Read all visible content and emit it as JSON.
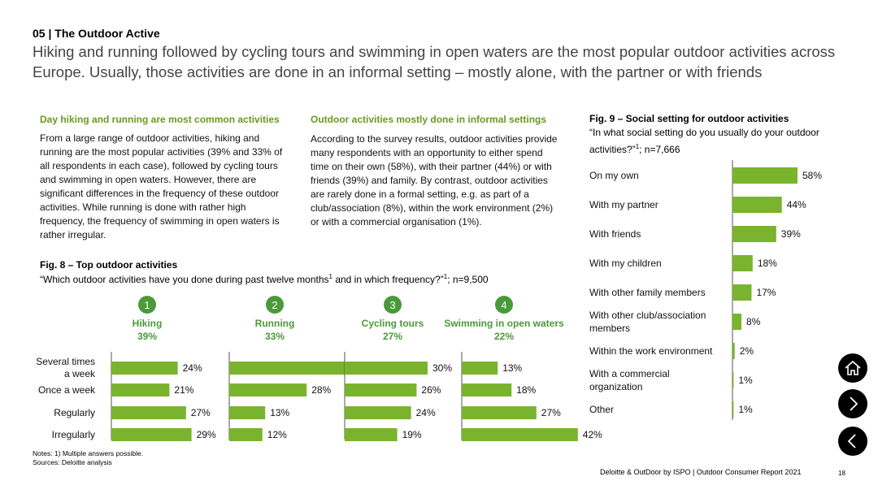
{
  "header": {
    "section": "05 | The Outdoor Active",
    "headline": "Hiking and running followed by cycling tours and swimming in open waters are the most popular outdoor activities across Europe. Usually, those activities are done in an informal setting – mostly alone, with the partner or with friends"
  },
  "col1": {
    "heading": "Day hiking and running are most common activities",
    "body": "From a large range of outdoor activities, hiking and running are the most popular activities (39% and 33% of all respondents in each case), followed by cycling tours and swimming in open waters. However, there are significant differences in the frequency of these outdoor activities. While running is done with rather high frequency, the frequency of swimming in open waters is rather irregular."
  },
  "col2": {
    "heading": "Outdoor activities mostly done in informal settings",
    "body": "According to the survey results, outdoor activities provide many respondents with an opportunity to either spend time on their own (58%), with their partner (44%) or with friends (39%) and family. By contrast, outdoor activities are rarely done in a formal setting, e.g. as part of a club/association (8%), within the work environment (2%) or with a commercial organisation (1%)."
  },
  "fig8": {
    "title": "Fig. 8 – Top outdoor activities",
    "question_a": "“Which outdoor activities have you done during past twelve months",
    "question_sup": "1",
    "question_b": " and in which frequency?”",
    "question_sup2": "1",
    "question_c": "; n=9,500"
  },
  "fig9": {
    "title": "Fig. 9 – Social setting for outdoor activities",
    "question_a": "“In what social setting do you usually do your outdoor activities?”",
    "question_sup": "1",
    "question_b": "; n=7,666"
  },
  "chart_data": [
    {
      "type": "bar",
      "orientation": "horizontal",
      "title": "Fig. 8 – Top outdoor activities",
      "categories": [
        "Several times a week",
        "Once a week",
        "Regularly",
        "Irregularly"
      ],
      "category_lines": [
        [
          "Several times",
          "a week"
        ],
        [
          "Once a week"
        ],
        [
          "Regularly"
        ],
        [
          "Irregularly"
        ]
      ],
      "xlim": [
        0,
        50
      ],
      "series": [
        {
          "number": "1",
          "name": "Hiking",
          "share": "39%",
          "values": [
            24,
            21,
            27,
            29
          ]
        },
        {
          "number": "2",
          "name": "Running",
          "share": "33%",
          "values": [
            47,
            28,
            13,
            12
          ]
        },
        {
          "number": "3",
          "name": "Cycling tours",
          "share": "27%",
          "values": [
            30,
            26,
            24,
            19
          ]
        },
        {
          "number": "4",
          "name": "Swimming in open waters",
          "share": "22%",
          "values": [
            13,
            18,
            27,
            42
          ]
        }
      ],
      "value_suffix": "%",
      "bar_color": "#7ab32e"
    },
    {
      "type": "bar",
      "orientation": "horizontal",
      "title": "Fig. 9 – Social setting for outdoor activities",
      "categories": [
        "On my own",
        "With my partner",
        "With friends",
        "With my children",
        "With other family members",
        "With other club/association members",
        "Within the work environment",
        "With a commercial organization",
        "Other"
      ],
      "category_lines": [
        [
          "On my own"
        ],
        [
          "With my partner"
        ],
        [
          "With friends"
        ],
        [
          "With my children"
        ],
        [
          "With other family members"
        ],
        [
          "With other club/association",
          "members"
        ],
        [
          "Within the work environment"
        ],
        [
          "With a commercial",
          "organization"
        ],
        [
          "Other"
        ]
      ],
      "values": [
        58,
        44,
        39,
        18,
        17,
        8,
        2,
        1,
        1
      ],
      "xlim": [
        0,
        80
      ],
      "value_suffix": "%",
      "bar_color": "#7ab32e"
    }
  ],
  "notes": {
    "line1": "Notes: 1) Multiple answers possible.",
    "line2": "Sources: Deloitte analysis"
  },
  "footer": {
    "source": "Deloitte & OutDoor by ISPO | Outdoor Consumer Report 2021",
    "page": "18"
  },
  "nav": {
    "home_icon": "home-icon",
    "next_icon": "chevron-right-icon",
    "prev_icon": "chevron-left-icon"
  }
}
